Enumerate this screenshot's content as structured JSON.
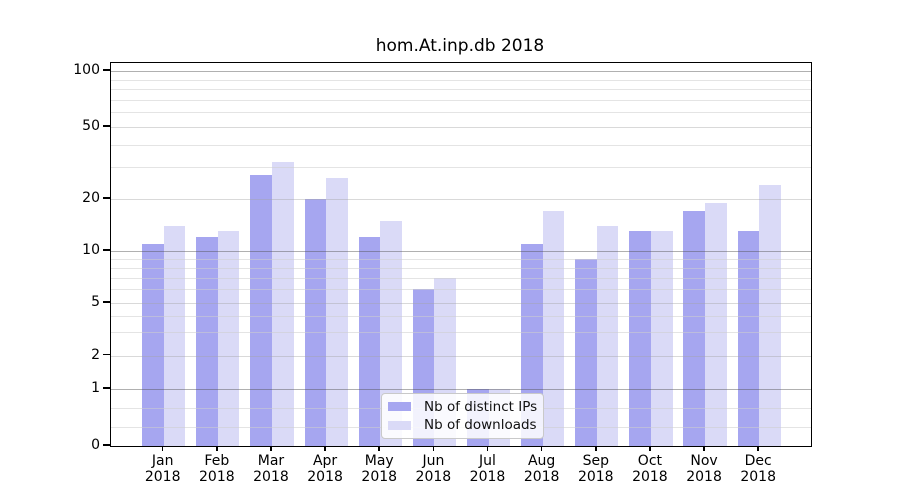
{
  "title": "hom.At.inp.db 2018",
  "chart_data": {
    "type": "bar",
    "title": "hom.At.inp.db 2018",
    "categories": [
      "Jan 2018",
      "Feb 2018",
      "Mar 2018",
      "Apr 2018",
      "May 2018",
      "Jun 2018",
      "Jul 2018",
      "Aug 2018",
      "Sep 2018",
      "Oct 2018",
      "Nov 2018",
      "Dec 2018"
    ],
    "months": [
      "Jan",
      "Feb",
      "Mar",
      "Apr",
      "May",
      "Jun",
      "Jul",
      "Aug",
      "Sep",
      "Oct",
      "Nov",
      "Dec"
    ],
    "year": "2018",
    "series": [
      {
        "name": "Nb of distinct IPs",
        "color": "#a6a6f0",
        "values": [
          11,
          12,
          27,
          20,
          12,
          6,
          1,
          11,
          9,
          13,
          17,
          13
        ]
      },
      {
        "name": "Nb of downloads",
        "color": "#dadaf7",
        "values": [
          14,
          13,
          32,
          26,
          15,
          7,
          1,
          17,
          14,
          13,
          19,
          24
        ]
      }
    ],
    "xlabel": "",
    "ylabel": "",
    "yscale": "quasi-log",
    "ylim": [
      0,
      110
    ],
    "y_major_ticks": [
      0,
      1,
      2,
      5,
      10,
      20,
      50,
      100
    ],
    "y_minor_ticks": [
      0.333,
      0.667,
      3,
      4,
      6,
      7,
      8,
      9,
      30,
      40,
      60,
      70,
      80,
      90
    ],
    "grid": true,
    "legend_position": "lower center"
  },
  "legend": {
    "items": [
      {
        "label": "Nb of distinct IPs",
        "color": "#a6a6f0"
      },
      {
        "label": "Nb of downloads",
        "color": "#dadaf7"
      }
    ]
  }
}
